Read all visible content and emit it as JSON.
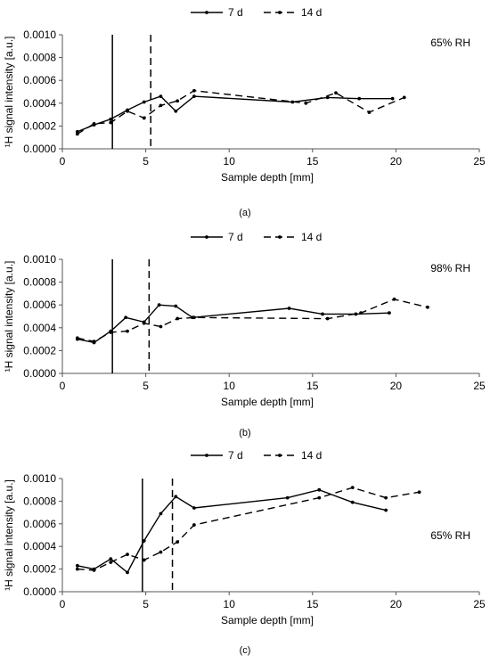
{
  "chart_data": [
    {
      "type": "line",
      "panel_label": "(a)",
      "annotation": "65% RH",
      "xlabel": "Sample depth [mm]",
      "ylabel": "¹H signal intensity [a.u.]",
      "xlim": [
        0,
        25
      ],
      "ylim": [
        0,
        0.001
      ],
      "xticks": [
        "0",
        "5",
        "10",
        "15",
        "20",
        "25"
      ],
      "yticks": [
        "0.0000",
        "0.0002",
        "0.0004",
        "0.0006",
        "0.0008",
        "0.0010"
      ],
      "legend_position": "top-center",
      "vlines": [
        {
          "series": "7 d",
          "x": 3.0
        },
        {
          "series": "14 d",
          "x": 5.3
        }
      ],
      "series": [
        {
          "name": "7 d",
          "style": "solid",
          "x": [
            0.9,
            1.9,
            2.9,
            3.9,
            4.9,
            5.9,
            6.8,
            7.9,
            13.8,
            15.9,
            17.8,
            19.8
          ],
          "y": [
            0.00015,
            0.00021,
            0.00026,
            0.00034,
            0.00041,
            0.00046,
            0.00033,
            0.00046,
            0.00041,
            0.00045,
            0.00044,
            0.00044
          ]
        },
        {
          "name": "14 d",
          "style": "dashed",
          "x": [
            0.9,
            1.9,
            2.9,
            3.9,
            4.9,
            5.9,
            6.9,
            7.9,
            14.6,
            16.4,
            18.4,
            20.5
          ],
          "y": [
            0.00013,
            0.00022,
            0.00023,
            0.00033,
            0.00027,
            0.00038,
            0.00042,
            0.00051,
            0.0004,
            0.00049,
            0.00032,
            0.00045
          ]
        }
      ]
    },
    {
      "type": "line",
      "panel_label": "(b)",
      "annotation": "98% RH",
      "xlabel": "Sample depth [mm]",
      "ylabel": "¹H signal intensity [a.u.]",
      "xlim": [
        0,
        25
      ],
      "ylim": [
        0,
        0.001
      ],
      "xticks": [
        "0",
        "5",
        "10",
        "15",
        "20",
        "25"
      ],
      "yticks": [
        "0.0000",
        "0.0002",
        "0.0004",
        "0.0006",
        "0.0008",
        "0.0010"
      ],
      "legend_position": "top-center",
      "vlines": [
        {
          "series": "7 d",
          "x": 3.0
        },
        {
          "series": "14 d",
          "x": 5.2
        }
      ],
      "series": [
        {
          "name": "7 d",
          "style": "solid",
          "x": [
            0.9,
            1.9,
            2.9,
            3.8,
            4.9,
            5.8,
            6.8,
            7.8,
            13.6,
            15.6,
            17.6,
            19.6
          ],
          "y": [
            0.0003,
            0.00027,
            0.00037,
            0.00049,
            0.00045,
            0.0006,
            0.00059,
            0.00049,
            0.00057,
            0.00052,
            0.00052,
            0.00053
          ]
        },
        {
          "name": "14 d",
          "style": "dashed",
          "x": [
            0.9,
            1.9,
            2.9,
            3.9,
            4.9,
            5.9,
            6.9,
            7.9,
            15.9,
            17.9,
            19.9,
            21.9
          ],
          "y": [
            0.00031,
            0.00028,
            0.00036,
            0.00037,
            0.00044,
            0.00041,
            0.00048,
            0.00049,
            0.00048,
            0.00053,
            0.00065,
            0.00058
          ]
        }
      ]
    },
    {
      "type": "line",
      "panel_label": "(c)",
      "annotation": "65% RH",
      "xlabel": "Sample depth [mm]",
      "ylabel": "¹H signal intensity [a.u.]",
      "xlim": [
        0,
        25
      ],
      "ylim": [
        0,
        0.001
      ],
      "xticks": [
        "0",
        "5",
        "10",
        "15",
        "20",
        "25"
      ],
      "yticks": [
        "0.0000",
        "0.0002",
        "0.0004",
        "0.0006",
        "0.0008",
        "0.0010"
      ],
      "legend_position": "top-center",
      "vlines": [
        {
          "series": "7 d",
          "x": 4.8
        },
        {
          "series": "14 d",
          "x": 6.6
        }
      ],
      "series": [
        {
          "name": "7 d",
          "style": "solid",
          "x": [
            0.9,
            1.9,
            2.9,
            3.9,
            4.9,
            5.9,
            6.8,
            7.9,
            13.5,
            15.4,
            17.4,
            19.4
          ],
          "y": [
            0.00023,
            0.0002,
            0.00029,
            0.00017,
            0.00045,
            0.00069,
            0.00084,
            0.00074,
            0.00083,
            0.0009,
            0.00079,
            0.00072
          ]
        },
        {
          "name": "14 d",
          "style": "dashed",
          "x": [
            0.9,
            1.9,
            2.9,
            3.9,
            4.9,
            5.9,
            6.9,
            7.9,
            15.4,
            17.4,
            19.4,
            21.4
          ],
          "y": [
            0.0002,
            0.00019,
            0.00026,
            0.00033,
            0.00028,
            0.00035,
            0.00044,
            0.00059,
            0.00083,
            0.00092,
            0.00083,
            0.00088
          ]
        }
      ]
    }
  ]
}
